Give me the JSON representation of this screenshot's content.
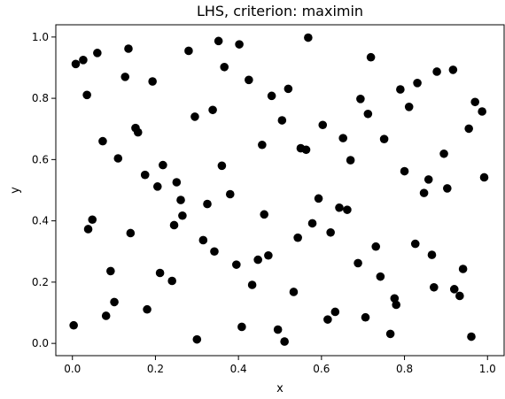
{
  "chart_data": {
    "type": "scatter",
    "title": "LHS, criterion: maximin",
    "xlabel": "x",
    "ylabel": "y",
    "xlim": [
      -0.04,
      1.04
    ],
    "ylim": [
      -0.04,
      1.04
    ],
    "x_ticks": [
      "0.0",
      "0.2",
      "0.4",
      "0.6",
      "0.8",
      "1.0"
    ],
    "y_ticks": [
      "0.0",
      "0.2",
      "0.4",
      "0.6",
      "0.8",
      "1.0"
    ],
    "grid": false,
    "marker_color": "#000000",
    "points": [
      [
        0.003,
        0.059
      ],
      [
        0.008,
        0.912
      ],
      [
        0.026,
        0.925
      ],
      [
        0.035,
        0.811
      ],
      [
        0.038,
        0.373
      ],
      [
        0.048,
        0.404
      ],
      [
        0.06,
        0.948
      ],
      [
        0.073,
        0.66
      ],
      [
        0.081,
        0.09
      ],
      [
        0.092,
        0.236
      ],
      [
        0.101,
        0.135
      ],
      [
        0.11,
        0.604
      ],
      [
        0.127,
        0.87
      ],
      [
        0.135,
        0.962
      ],
      [
        0.14,
        0.36
      ],
      [
        0.152,
        0.703
      ],
      [
        0.158,
        0.689
      ],
      [
        0.175,
        0.55
      ],
      [
        0.18,
        0.111
      ],
      [
        0.193,
        0.855
      ],
      [
        0.205,
        0.512
      ],
      [
        0.211,
        0.23
      ],
      [
        0.218,
        0.582
      ],
      [
        0.24,
        0.204
      ],
      [
        0.245,
        0.386
      ],
      [
        0.251,
        0.526
      ],
      [
        0.261,
        0.468
      ],
      [
        0.265,
        0.417
      ],
      [
        0.28,
        0.955
      ],
      [
        0.295,
        0.74
      ],
      [
        0.3,
        0.013
      ],
      [
        0.315,
        0.337
      ],
      [
        0.325,
        0.455
      ],
      [
        0.338,
        0.762
      ],
      [
        0.342,
        0.3
      ],
      [
        0.352,
        0.987
      ],
      [
        0.36,
        0.58
      ],
      [
        0.366,
        0.902
      ],
      [
        0.38,
        0.487
      ],
      [
        0.395,
        0.257
      ],
      [
        0.402,
        0.976
      ],
      [
        0.408,
        0.054
      ],
      [
        0.425,
        0.86
      ],
      [
        0.433,
        0.191
      ],
      [
        0.447,
        0.273
      ],
      [
        0.457,
        0.648
      ],
      [
        0.462,
        0.421
      ],
      [
        0.472,
        0.287
      ],
      [
        0.48,
        0.808
      ],
      [
        0.495,
        0.045
      ],
      [
        0.505,
        0.728
      ],
      [
        0.511,
        0.006
      ],
      [
        0.52,
        0.831
      ],
      [
        0.533,
        0.168
      ],
      [
        0.543,
        0.345
      ],
      [
        0.55,
        0.637
      ],
      [
        0.563,
        0.632
      ],
      [
        0.568,
        0.998
      ],
      [
        0.578,
        0.392
      ],
      [
        0.593,
        0.473
      ],
      [
        0.603,
        0.713
      ],
      [
        0.615,
        0.078
      ],
      [
        0.622,
        0.362
      ],
      [
        0.633,
        0.103
      ],
      [
        0.643,
        0.443
      ],
      [
        0.652,
        0.67
      ],
      [
        0.662,
        0.436
      ],
      [
        0.67,
        0.598
      ],
      [
        0.688,
        0.262
      ],
      [
        0.694,
        0.798
      ],
      [
        0.706,
        0.085
      ],
      [
        0.712,
        0.749
      ],
      [
        0.719,
        0.934
      ],
      [
        0.731,
        0.316
      ],
      [
        0.742,
        0.218
      ],
      [
        0.751,
        0.667
      ],
      [
        0.766,
        0.031
      ],
      [
        0.776,
        0.147
      ],
      [
        0.78,
        0.126
      ],
      [
        0.79,
        0.829
      ],
      [
        0.8,
        0.562
      ],
      [
        0.811,
        0.772
      ],
      [
        0.826,
        0.325
      ],
      [
        0.831,
        0.85
      ],
      [
        0.847,
        0.491
      ],
      [
        0.858,
        0.535
      ],
      [
        0.866,
        0.289
      ],
      [
        0.871,
        0.183
      ],
      [
        0.878,
        0.887
      ],
      [
        0.895,
        0.619
      ],
      [
        0.903,
        0.506
      ],
      [
        0.917,
        0.893
      ],
      [
        0.92,
        0.177
      ],
      [
        0.933,
        0.155
      ],
      [
        0.941,
        0.243
      ],
      [
        0.955,
        0.701
      ],
      [
        0.961,
        0.022
      ],
      [
        0.97,
        0.788
      ],
      [
        0.987,
        0.757
      ],
      [
        0.992,
        0.542
      ]
    ]
  }
}
